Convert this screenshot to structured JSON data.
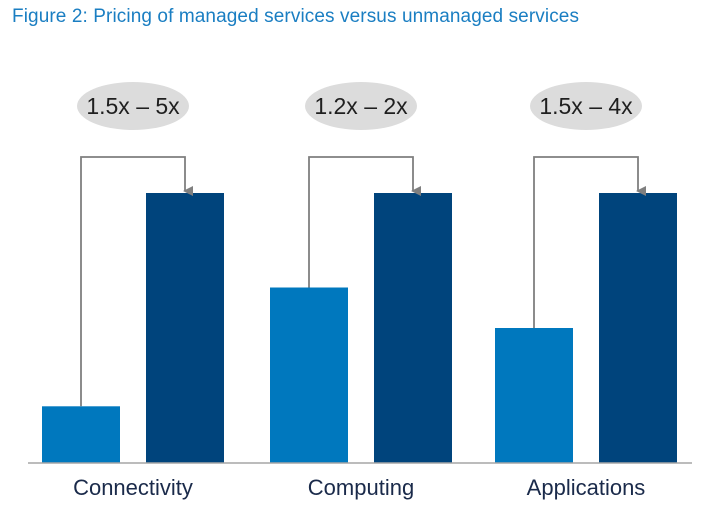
{
  "title": "Figure 2: Pricing of managed services versus unmanaged services",
  "colors": {
    "unmanaged": "#0078be",
    "managed": "#00447c",
    "range_bubble": "#dcdcdc",
    "connector": "#7f7f7f",
    "axis": "#a6a6a6"
  },
  "chart_data": {
    "type": "bar",
    "title": "Figure 2: Pricing of managed services versus unmanaged services",
    "categories": [
      "Connectivity",
      "Computing",
      "Applications"
    ],
    "series": [
      {
        "values": [
          21,
          65,
          50
        ]
      },
      {
        "values": [
          100,
          100,
          100
        ]
      }
    ],
    "annotations": [
      "1.5x – 5x",
      "1.2x – 2x",
      "1.5x – 4x"
    ],
    "ylim": [
      0,
      100
    ],
    "grid": false,
    "legend": "none"
  }
}
